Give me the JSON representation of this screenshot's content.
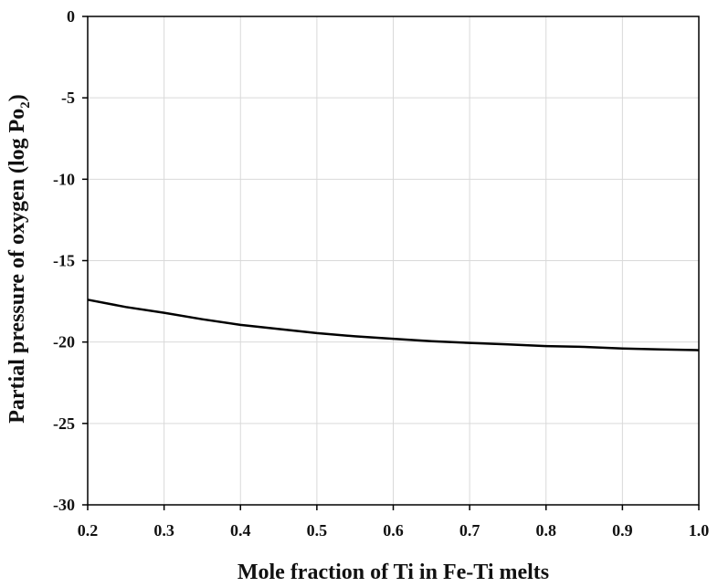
{
  "chart_data": {
    "type": "line",
    "title": "",
    "xlabel": "Mole fraction of Ti in Fe-Ti melts",
    "ylabel": {
      "main": "Partial pressure of oxygen (log Po",
      "subscript": "2",
      "close": ")"
    },
    "xlim": [
      0.2,
      1.0
    ],
    "ylim": [
      -30,
      0
    ],
    "xticks": [
      "0.2",
      "0.3",
      "0.4",
      "0.5",
      "0.6",
      "0.7",
      "0.8",
      "0.9",
      "1.0"
    ],
    "yticks": [
      "0",
      "-5",
      "-10",
      "-15",
      "-20",
      "-25",
      "-30"
    ],
    "grid": true,
    "series": [
      {
        "color": "#000000",
        "x": [
          0.2,
          0.25,
          0.3,
          0.35,
          0.4,
          0.45,
          0.5,
          0.55,
          0.6,
          0.65,
          0.7,
          0.75,
          0.8,
          0.85,
          0.9,
          0.95,
          1.0
        ],
        "y": [
          -17.4,
          -17.85,
          -18.2,
          -18.6,
          -18.95,
          -19.2,
          -19.45,
          -19.65,
          -19.8,
          -19.95,
          -20.05,
          -20.15,
          -20.25,
          -20.3,
          -20.4,
          -20.45,
          -20.5
        ]
      }
    ]
  }
}
